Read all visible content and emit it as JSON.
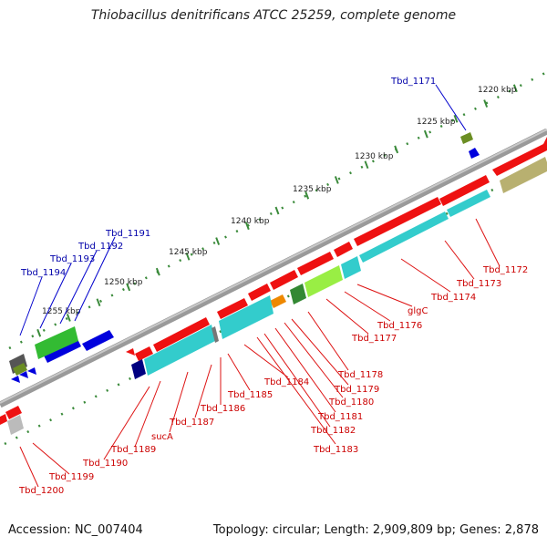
{
  "title": "Thiobacillus denitrificans ATCC 25259, complete genome",
  "footer": {
    "accession": "Accession: NC_007404",
    "summary": "Topology: circular; Length: 2,909,809 bp; Genes: 2,878"
  },
  "colors": {
    "forward_label": "#0000aa",
    "reverse_label": "#cc0000",
    "backbone": "#8a8a8a",
    "tick": "#3a8a3a"
  },
  "scale_labels": [
    "1220 kbp",
    "1225 kbp",
    "1230 kbp",
    "1235 kbp",
    "1240 kbp",
    "1245 kbp",
    "1250 kbp",
    "1255 kbp"
  ],
  "forward_labels": [
    "Tbd_1171",
    "Tbd_1191",
    "Tbd_1192",
    "Tbd_1193",
    "Tbd_1194"
  ],
  "reverse_labels": [
    "Tbd_1172",
    "Tbd_1173",
    "Tbd_1174",
    "glgC",
    "Tbd_1176",
    "Tbd_1177",
    "Tbd_1178",
    "Tbd_1179",
    "Tbd_1180",
    "Tbd_1181",
    "Tbd_1182",
    "Tbd_1183",
    "Tbd_1184",
    "Tbd_1185",
    "Tbd_1186",
    "Tbd_1187",
    "sucA",
    "Tbd_1189",
    "Tbd_1190",
    "Tbd_1199",
    "Tbd_1200"
  ]
}
